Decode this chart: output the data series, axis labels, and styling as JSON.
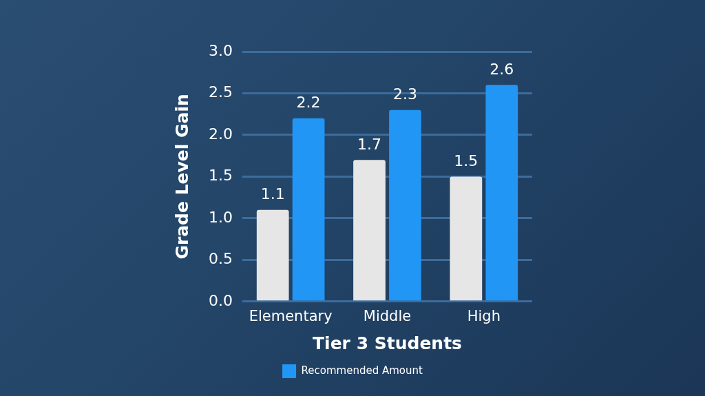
{
  "chart_data": {
    "type": "bar",
    "xlabel": "Tier 3 Students",
    "ylabel": "Grade Level Gain",
    "categories": [
      "Elementary",
      "Middle",
      "High"
    ],
    "series": [
      {
        "color": "#e6e6e6",
        "values": [
          1.1,
          1.7,
          1.5
        ]
      },
      {
        "name": "Recommended Amount",
        "color": "#2196f5",
        "values": [
          2.2,
          2.3,
          2.6
        ]
      }
    ],
    "ylim": [
      0,
      3
    ],
    "yticks": [
      {
        "value": 0,
        "label": "0.0"
      },
      {
        "value": 0.5,
        "label": "0.5"
      },
      {
        "value": 1,
        "label": "1.0"
      },
      {
        "value": 1.5,
        "label": "1.5"
      },
      {
        "value": 2,
        "label": "2.0"
      },
      {
        "value": 2.5,
        "label": "2.5"
      },
      {
        "value": 3,
        "label": "3.0"
      }
    ],
    "grid": "y",
    "legend": "bottom",
    "data_labels": true
  }
}
